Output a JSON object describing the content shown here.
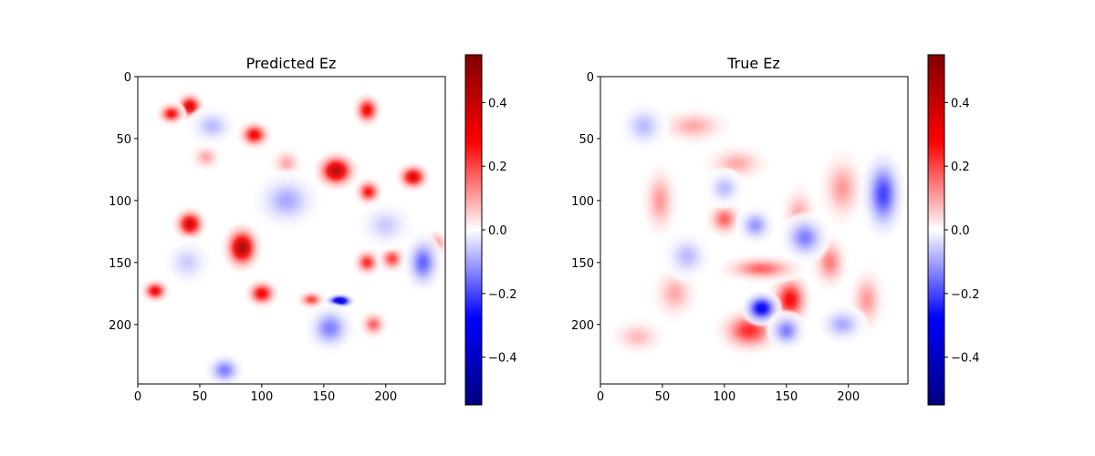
{
  "chart_data": [
    {
      "type": "heatmap",
      "title": "Predicted Ez",
      "xlabel": "",
      "ylabel": "",
      "grid": false,
      "xlim": [
        0,
        248
      ],
      "ylim": [
        248,
        0
      ],
      "xticks": [
        0,
        50,
        100,
        150,
        200
      ],
      "yticks": [
        0,
        50,
        100,
        150,
        200
      ],
      "xtick_labels": [
        "0",
        "50",
        "100",
        "150",
        "200"
      ],
      "ytick_labels": [
        "0",
        "50",
        "100",
        "150",
        "200"
      ],
      "colormap": "seismic",
      "color_min": -0.55,
      "color_max": 0.55,
      "colorbar_ticks": [
        0.4,
        0.2,
        0.0,
        -0.2,
        -0.4
      ],
      "colorbar_tick_labels": [
        "0.4",
        "0.2",
        "0.0",
        "−0.2",
        "−0.4"
      ],
      "features": [
        {
          "x": 42,
          "y": 24,
          "sx": 6,
          "sy": 6,
          "v": 0.38
        },
        {
          "x": 27,
          "y": 30,
          "sx": 6,
          "sy": 5,
          "v": 0.3
        },
        {
          "x": 94,
          "y": 47,
          "sx": 7,
          "sy": 6,
          "v": 0.32
        },
        {
          "x": 185,
          "y": 27,
          "sx": 6,
          "sy": 7,
          "v": 0.32
        },
        {
          "x": 160,
          "y": 76,
          "sx": 9,
          "sy": 8,
          "v": 0.45
        },
        {
          "x": 222,
          "y": 81,
          "sx": 7,
          "sy": 6,
          "v": 0.38
        },
        {
          "x": 186,
          "y": 93,
          "sx": 6,
          "sy": 6,
          "v": 0.28
        },
        {
          "x": 42,
          "y": 119,
          "sx": 7,
          "sy": 7,
          "v": 0.4
        },
        {
          "x": 84,
          "y": 138,
          "sx": 8,
          "sy": 10,
          "v": 0.48
        },
        {
          "x": 100,
          "y": 175,
          "sx": 7,
          "sy": 6,
          "v": 0.33
        },
        {
          "x": 14,
          "y": 173,
          "sx": 6,
          "sy": 5,
          "v": 0.33
        },
        {
          "x": 185,
          "y": 150,
          "sx": 6,
          "sy": 6,
          "v": 0.25
        },
        {
          "x": 205,
          "y": 147,
          "sx": 6,
          "sy": 6,
          "v": 0.22
        },
        {
          "x": 240,
          "y": 135,
          "sx": 6,
          "sy": 6,
          "v": 0.15
        },
        {
          "x": 190,
          "y": 200,
          "sx": 6,
          "sy": 6,
          "v": 0.18
        },
        {
          "x": 55,
          "y": 65,
          "sx": 7,
          "sy": 6,
          "v": 0.1
        },
        {
          "x": 120,
          "y": 70,
          "sx": 7,
          "sy": 7,
          "v": 0.1
        },
        {
          "x": 140,
          "y": 180,
          "sx": 6,
          "sy": 4,
          "v": 0.22
        },
        {
          "x": 163,
          "y": 181,
          "sx": 6,
          "sy": 3,
          "v": -0.45
        },
        {
          "x": 155,
          "y": 203,
          "sx": 10,
          "sy": 10,
          "v": -0.15
        },
        {
          "x": 230,
          "y": 150,
          "sx": 8,
          "sy": 12,
          "v": -0.18
        },
        {
          "x": 120,
          "y": 100,
          "sx": 14,
          "sy": 12,
          "v": -0.1
        },
        {
          "x": 70,
          "y": 237,
          "sx": 8,
          "sy": 7,
          "v": -0.15
        },
        {
          "x": 60,
          "y": 40,
          "sx": 10,
          "sy": 8,
          "v": -0.08
        },
        {
          "x": 40,
          "y": 150,
          "sx": 10,
          "sy": 10,
          "v": -0.06
        },
        {
          "x": 200,
          "y": 120,
          "sx": 12,
          "sy": 10,
          "v": -0.06
        }
      ]
    },
    {
      "type": "heatmap",
      "title": "True Ez",
      "xlabel": "",
      "ylabel": "",
      "grid": false,
      "xlim": [
        0,
        248
      ],
      "ylim": [
        248,
        0
      ],
      "xticks": [
        0,
        50,
        100,
        150,
        200
      ],
      "yticks": [
        0,
        50,
        100,
        150,
        200
      ],
      "xtick_labels": [
        "0",
        "50",
        "100",
        "150",
        "200"
      ],
      "ytick_labels": [
        "0",
        "50",
        "100",
        "150",
        "200"
      ],
      "colormap": "seismic",
      "color_min": -0.55,
      "color_max": 0.55,
      "colorbar_ticks": [
        0.4,
        0.2,
        0.0,
        -0.2,
        -0.4
      ],
      "colorbar_tick_labels": [
        "0.4",
        "0.2",
        "0.0",
        "−0.2",
        "−0.4"
      ],
      "features": [
        {
          "x": 48,
          "y": 100,
          "sx": 8,
          "sy": 16,
          "v": 0.12
        },
        {
          "x": 75,
          "y": 40,
          "sx": 16,
          "sy": 8,
          "v": 0.1
        },
        {
          "x": 100,
          "y": 115,
          "sx": 8,
          "sy": 8,
          "v": 0.18
        },
        {
          "x": 153,
          "y": 180,
          "sx": 9,
          "sy": 12,
          "v": 0.3
        },
        {
          "x": 120,
          "y": 205,
          "sx": 14,
          "sy": 10,
          "v": 0.25
        },
        {
          "x": 130,
          "y": 155,
          "sx": 18,
          "sy": 6,
          "v": 0.18
        },
        {
          "x": 185,
          "y": 150,
          "sx": 8,
          "sy": 12,
          "v": 0.15
        },
        {
          "x": 215,
          "y": 180,
          "sx": 8,
          "sy": 14,
          "v": 0.12
        },
        {
          "x": 195,
          "y": 90,
          "sx": 10,
          "sy": 16,
          "v": 0.12
        },
        {
          "x": 160,
          "y": 110,
          "sx": 8,
          "sy": 12,
          "v": 0.1
        },
        {
          "x": 60,
          "y": 175,
          "sx": 10,
          "sy": 12,
          "v": 0.1
        },
        {
          "x": 110,
          "y": 70,
          "sx": 14,
          "sy": 8,
          "v": 0.1
        },
        {
          "x": 30,
          "y": 210,
          "sx": 12,
          "sy": 8,
          "v": 0.08
        },
        {
          "x": 130,
          "y": 187,
          "sx": 8,
          "sy": 7,
          "v": -0.33
        },
        {
          "x": 228,
          "y": 95,
          "sx": 9,
          "sy": 18,
          "v": -0.22
        },
        {
          "x": 165,
          "y": 130,
          "sx": 10,
          "sy": 10,
          "v": -0.15
        },
        {
          "x": 150,
          "y": 205,
          "sx": 8,
          "sy": 8,
          "v": -0.15
        },
        {
          "x": 125,
          "y": 120,
          "sx": 8,
          "sy": 8,
          "v": -0.12
        },
        {
          "x": 35,
          "y": 40,
          "sx": 10,
          "sy": 10,
          "v": -0.08
        },
        {
          "x": 70,
          "y": 145,
          "sx": 10,
          "sy": 10,
          "v": -0.08
        },
        {
          "x": 195,
          "y": 200,
          "sx": 10,
          "sy": 8,
          "v": -0.1
        },
        {
          "x": 100,
          "y": 90,
          "sx": 8,
          "sy": 8,
          "v": -0.08
        }
      ]
    }
  ]
}
